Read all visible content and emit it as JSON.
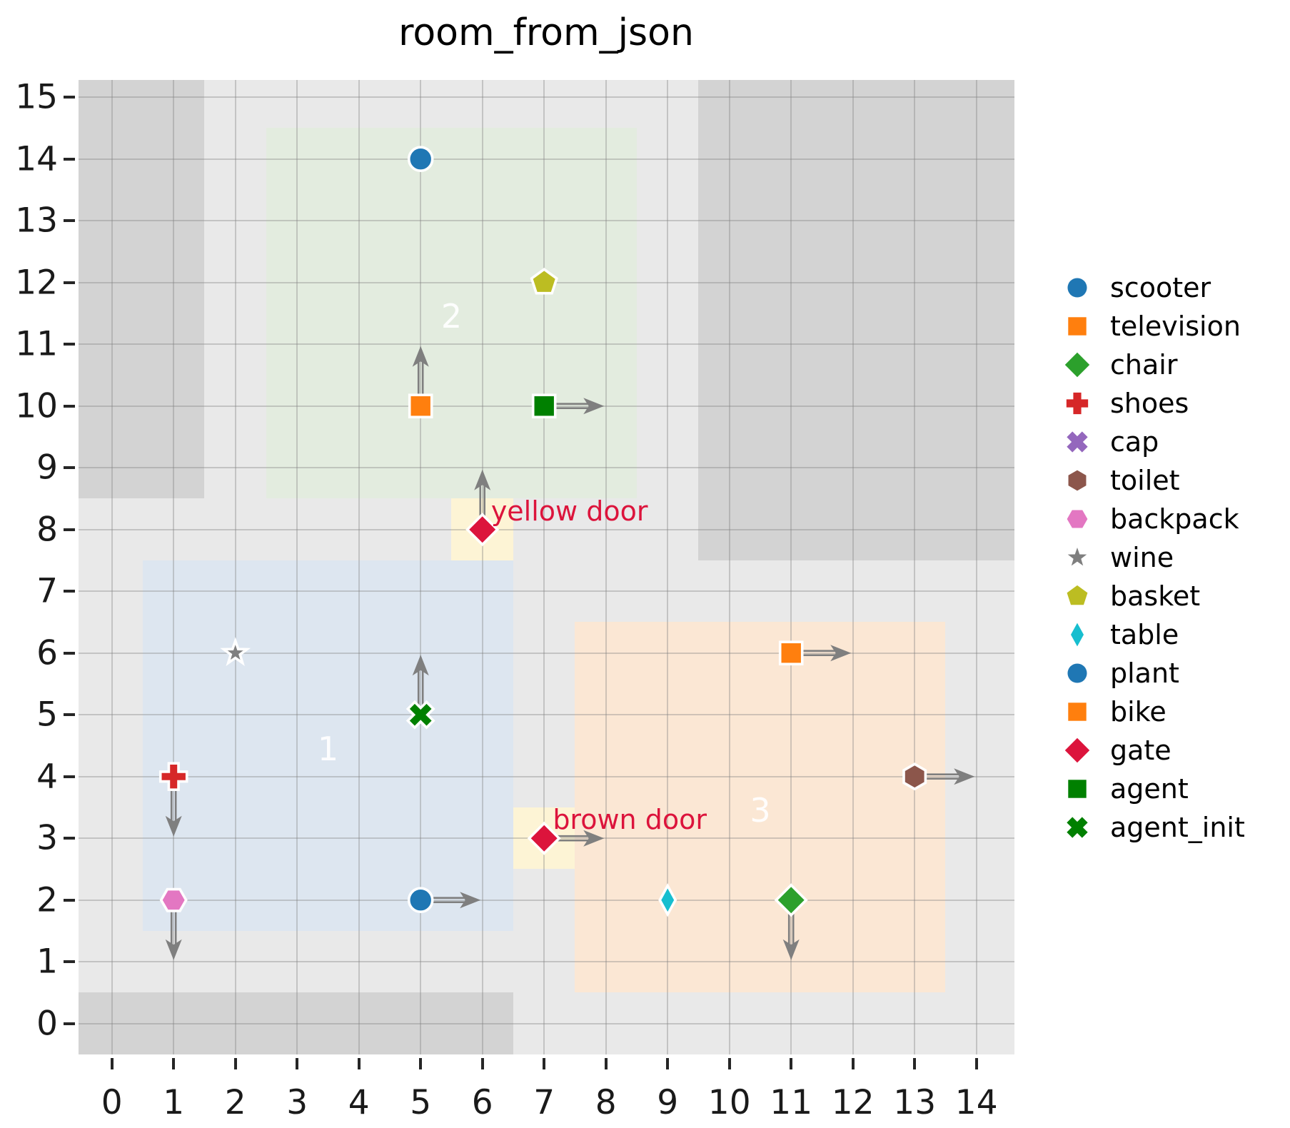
{
  "chart_data": {
    "type": "scatter",
    "title": "room_from_json",
    "xlabel": "",
    "ylabel": "",
    "xlim": [
      -0.54,
      14.62
    ],
    "ylim": [
      -0.5,
      15.28
    ],
    "x_ticks": [
      0,
      1,
      2,
      3,
      4,
      5,
      6,
      7,
      8,
      9,
      10,
      11,
      12,
      13,
      14
    ],
    "y_ticks": [
      0,
      1,
      2,
      3,
      4,
      5,
      6,
      7,
      8,
      9,
      10,
      11,
      12,
      13,
      14,
      15
    ],
    "grid": true,
    "legend_position": "right",
    "colors": {
      "plot_background": "#e9e9e9",
      "obstacle": "#d3d3d3",
      "grid_line": "rgba(125,125,125,0.35)",
      "arrow": "#7f7f7f",
      "door_background": "#fdf4d5",
      "door_label": "#dc143c",
      "room_label": "#ffffff",
      "marker_edge": "#ffffff"
    },
    "obstacles": [
      {
        "name": "obstacle-top-left",
        "x0": -0.54,
        "y0": 8.5,
        "x1": 1.5,
        "y1": 15.28
      },
      {
        "name": "obstacle-top-right",
        "x0": 9.5,
        "y0": 7.5,
        "x1": 14.62,
        "y1": 15.28
      },
      {
        "name": "obstacle-bottom",
        "x0": -0.54,
        "y0": -0.5,
        "x1": 6.5,
        "y1": 0.5
      }
    ],
    "rooms": [
      {
        "label": "1",
        "x0": 0.5,
        "y0": 1.5,
        "x1": 6.5,
        "y1": 7.5,
        "color": "#dde6f0",
        "label_x": 3.5,
        "label_y": 4.45
      },
      {
        "label": "2",
        "x0": 2.5,
        "y0": 8.5,
        "x1": 8.5,
        "y1": 14.5,
        "color": "#e3ecdf",
        "label_x": 5.5,
        "label_y": 11.45
      },
      {
        "label": "3",
        "x0": 7.5,
        "y0": 0.5,
        "x1": 13.5,
        "y1": 6.5,
        "color": "#fbe7d4",
        "label_x": 10.5,
        "label_y": 3.45
      }
    ],
    "doors": [
      {
        "name": "yellow-door",
        "label": "yellow door",
        "x0": 5.5,
        "y0": 7.5,
        "x1": 6.5,
        "y1": 8.5,
        "label_x": 6.14,
        "label_y": 8.3
      },
      {
        "name": "brown-door",
        "label": "brown door",
        "x0": 6.5,
        "y0": 2.5,
        "x1": 7.5,
        "y1": 3.5,
        "label_x": 7.14,
        "label_y": 3.3
      }
    ],
    "points": [
      {
        "name": "scooter",
        "shape": "circle",
        "color": "#1f77b4",
        "x": 5,
        "y": 14,
        "arrow": null
      },
      {
        "name": "television",
        "shape": "square",
        "color": "#ff7f0e",
        "x": 5,
        "y": 10,
        "arrow": "up"
      },
      {
        "name": "chair",
        "shape": "diamond",
        "color": "#2ca02c",
        "x": 11,
        "y": 2,
        "arrow": "down"
      },
      {
        "name": "shoes",
        "shape": "plus",
        "color": "#d62728",
        "x": 1,
        "y": 4,
        "arrow": "down"
      },
      {
        "name": "toilet",
        "shape": "hexagon-v",
        "color": "#8c564b",
        "x": 13,
        "y": 4,
        "arrow": "right"
      },
      {
        "name": "backpack",
        "shape": "hexagon-h",
        "color": "#e377c2",
        "x": 1,
        "y": 2,
        "arrow": "down"
      },
      {
        "name": "wine",
        "shape": "star",
        "color": "#7f7f7f",
        "x": 2,
        "y": 6,
        "arrow": null
      },
      {
        "name": "basket",
        "shape": "pentagon",
        "color": "#bcbd22",
        "x": 7,
        "y": 12,
        "arrow": null
      },
      {
        "name": "table",
        "shape": "thin-diamond",
        "color": "#17becf",
        "x": 9,
        "y": 2,
        "arrow": null
      },
      {
        "name": "plant",
        "shape": "circle",
        "color": "#1f77b4",
        "x": 5,
        "y": 2,
        "arrow": "right"
      },
      {
        "name": "bike",
        "shape": "square",
        "color": "#ff7f0e",
        "x": 11,
        "y": 6,
        "arrow": "right"
      },
      {
        "name": "gate-yellow-door",
        "shape": "diamond",
        "color": "#dc143c",
        "x": 6,
        "y": 8,
        "arrow": "up"
      },
      {
        "name": "gate-brown-door",
        "shape": "diamond",
        "color": "#dc143c",
        "x": 7,
        "y": 3,
        "arrow": "right"
      },
      {
        "name": "agent",
        "shape": "square",
        "color": "#008000",
        "x": 7,
        "y": 10,
        "arrow": "right"
      },
      {
        "name": "agent_init",
        "shape": "x",
        "color": "#008000",
        "x": 5,
        "y": 5,
        "arrow": "up"
      }
    ],
    "legend": [
      {
        "label": "scooter",
        "shape": "circle",
        "color": "#1f77b4"
      },
      {
        "label": "television",
        "shape": "square",
        "color": "#ff7f0e"
      },
      {
        "label": "chair",
        "shape": "diamond",
        "color": "#2ca02c"
      },
      {
        "label": "shoes",
        "shape": "plus",
        "color": "#d62728"
      },
      {
        "label": "cap",
        "shape": "x",
        "color": "#9467bd"
      },
      {
        "label": "toilet",
        "shape": "hexagon-v",
        "color": "#8c564b"
      },
      {
        "label": "backpack",
        "shape": "hexagon-h",
        "color": "#e377c2"
      },
      {
        "label": "wine",
        "shape": "star",
        "color": "#7f7f7f"
      },
      {
        "label": "basket",
        "shape": "pentagon",
        "color": "#bcbd22"
      },
      {
        "label": "table",
        "shape": "thin-diamond",
        "color": "#17becf"
      },
      {
        "label": "plant",
        "shape": "circle",
        "color": "#1f77b4"
      },
      {
        "label": "bike",
        "shape": "square",
        "color": "#ff7f0e"
      },
      {
        "label": "gate",
        "shape": "diamond",
        "color": "#dc143c"
      },
      {
        "label": "agent",
        "shape": "square",
        "color": "#008000"
      },
      {
        "label": "agent_init",
        "shape": "x",
        "color": "#008000"
      }
    ]
  }
}
